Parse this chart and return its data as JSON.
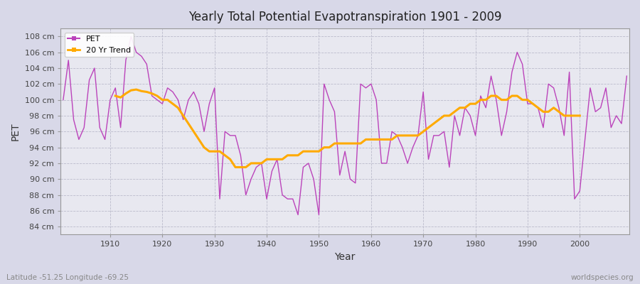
{
  "title": "Yearly Total Potential Evapotranspiration 1901 - 2009",
  "xlabel": "Year",
  "ylabel": "PET",
  "lat_lon_label": "Latitude -51.25 Longitude -69.25",
  "watermark": "worldspecies.org",
  "outer_bg_color": "#d8d8e8",
  "plot_bg_color": "#e8e8f0",
  "grid_color": "#bbbbcc",
  "pet_color": "#bb44bb",
  "trend_color": "#ffaa00",
  "ylim": [
    83,
    109
  ],
  "yticks": [
    84,
    86,
    88,
    90,
    92,
    94,
    96,
    98,
    100,
    102,
    104,
    106,
    108
  ],
  "xlim": [
    1900.5,
    2009.5
  ],
  "xticks": [
    1910,
    1920,
    1930,
    1940,
    1950,
    1960,
    1970,
    1980,
    1990,
    2000
  ],
  "years": [
    1901,
    1902,
    1903,
    1904,
    1905,
    1906,
    1907,
    1908,
    1909,
    1910,
    1911,
    1912,
    1913,
    1914,
    1915,
    1916,
    1917,
    1918,
    1919,
    1920,
    1921,
    1922,
    1923,
    1924,
    1925,
    1926,
    1927,
    1928,
    1929,
    1930,
    1931,
    1932,
    1933,
    1934,
    1935,
    1936,
    1937,
    1938,
    1939,
    1940,
    1941,
    1942,
    1943,
    1944,
    1945,
    1946,
    1947,
    1948,
    1949,
    1950,
    1951,
    1952,
    1953,
    1954,
    1955,
    1956,
    1957,
    1958,
    1959,
    1960,
    1961,
    1962,
    1963,
    1964,
    1965,
    1966,
    1967,
    1968,
    1969,
    1970,
    1971,
    1972,
    1973,
    1974,
    1975,
    1976,
    1977,
    1978,
    1979,
    1980,
    1981,
    1982,
    1983,
    1984,
    1985,
    1986,
    1987,
    1988,
    1989,
    1990,
    1991,
    1992,
    1993,
    1994,
    1995,
    1996,
    1997,
    1998,
    1999,
    2000,
    2001,
    2002,
    2003,
    2004,
    2005,
    2006,
    2007,
    2008,
    2009
  ],
  "pet_values": [
    100.0,
    105.0,
    97.5,
    95.0,
    96.5,
    102.5,
    104.0,
    96.5,
    95.0,
    100.0,
    101.5,
    96.5,
    105.0,
    108.0,
    106.0,
    105.5,
    104.5,
    100.5,
    100.0,
    99.5,
    101.5,
    101.0,
    100.0,
    97.5,
    100.0,
    101.0,
    99.5,
    96.0,
    99.5,
    101.5,
    87.5,
    96.0,
    95.5,
    95.5,
    93.0,
    88.0,
    90.0,
    91.5,
    92.0,
    87.5,
    91.0,
    92.5,
    88.0,
    87.5,
    87.5,
    85.5,
    91.5,
    92.0,
    90.0,
    85.5,
    102.0,
    100.0,
    98.5,
    90.5,
    93.5,
    90.0,
    89.5,
    102.0,
    101.5,
    102.0,
    100.0,
    92.0,
    92.0,
    96.0,
    95.5,
    94.0,
    92.0,
    94.0,
    95.5,
    101.0,
    92.5,
    95.5,
    95.5,
    96.0,
    91.5,
    98.0,
    95.5,
    99.0,
    98.0,
    95.5,
    100.5,
    99.0,
    103.0,
    100.0,
    95.5,
    98.5,
    103.5,
    106.0,
    104.5,
    99.5,
    99.5,
    99.0,
    96.5,
    102.0,
    101.5,
    99.0,
    95.5,
    103.5,
    87.5,
    88.5,
    95.0,
    101.5,
    98.5,
    99.0,
    101.5,
    96.5,
    98.0,
    97.0,
    103.0
  ],
  "trend_values": [
    null,
    null,
    null,
    null,
    null,
    null,
    null,
    null,
    null,
    null,
    100.5,
    100.3,
    100.8,
    101.2,
    101.3,
    101.1,
    101.0,
    100.8,
    100.5,
    100.0,
    100.0,
    99.5,
    99.0,
    98.0,
    97.0,
    96.0,
    95.0,
    94.0,
    93.5,
    93.5,
    93.5,
    93.0,
    92.5,
    91.5,
    91.5,
    91.5,
    92.0,
    92.0,
    92.0,
    92.5,
    92.5,
    92.5,
    92.5,
    93.0,
    93.0,
    93.0,
    93.5,
    93.5,
    93.5,
    93.5,
    94.0,
    94.0,
    94.5,
    94.5,
    94.5,
    94.5,
    94.5,
    94.5,
    95.0,
    95.0,
    95.0,
    95.0,
    95.0,
    95.0,
    95.5,
    95.5,
    95.5,
    95.5,
    95.5,
    96.0,
    96.5,
    97.0,
    97.5,
    98.0,
    98.0,
    98.5,
    99.0,
    99.0,
    99.5,
    99.5,
    100.0,
    100.0,
    100.5,
    100.5,
    100.0,
    100.0,
    100.5,
    100.5,
    100.0,
    100.0,
    99.5,
    99.0,
    98.5,
    98.5,
    99.0,
    98.5,
    98.0,
    98.0,
    98.0,
    98.0,
    null,
    null,
    null,
    null,
    null,
    null,
    null,
    null,
    null
  ]
}
